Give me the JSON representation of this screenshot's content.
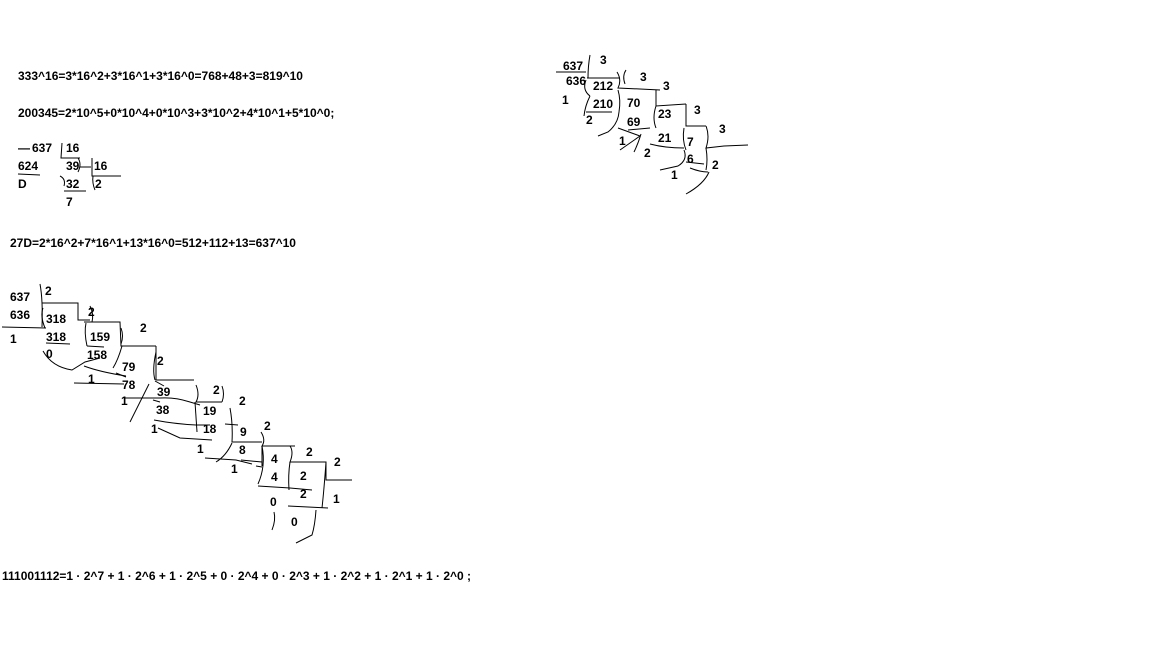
{
  "formulas": {
    "hex_333": "333^16=3*16^2+3*16^1+3*16^0=768+48+3=819^10",
    "dec_200345": "200345=2*10^5+0*10^4+0*10^3+3*10^2+4*10^1+5*10^0;",
    "hex_27D": "27D=2*16^2+7*16^1+13*16^0=512+112+13=637^10",
    "bin_111001112": "111001112=1 · 2^7 + 1 · 2^6 + 1 · 2^5 + 0 · 2^4 + 0 · 2^3 + 1 · 2^2 + 1 · 2^1 + 1 · 2^0 ;"
  },
  "hex_division": {
    "dash": "—",
    "dividend": "637",
    "divisor1": "16",
    "sub1": "624",
    "quotient1": "39",
    "divisor2": "16",
    "remainder1": "D",
    "sub2": "32",
    "quotient2": "2",
    "remainder2": "7"
  },
  "binary_division": {
    "dividend": "637",
    "d1": "2",
    "sub1": "636",
    "q1": "318",
    "r1": "1",
    "d2": "2",
    "sub2": "318",
    "q2": "159",
    "r2": "0",
    "d3": "2",
    "sub3": "158",
    "q3": "79",
    "r3": "1",
    "d4": "2",
    "sub4": "78",
    "q4": "39",
    "r4": "1",
    "d5": "2",
    "sub5": "38",
    "q5": "19",
    "r5": "1",
    "d6": "2",
    "sub6": "18",
    "q6": "9",
    "r6": "1",
    "d7": "2",
    "sub7": "8",
    "q7": "4",
    "r7": "1",
    "d8": "2",
    "sub8": "4",
    "q8": "2",
    "r8": "0",
    "d9": "2",
    "sub9": "2",
    "q9": "1",
    "r9": "0"
  },
  "ternary_division": {
    "dividend": "637",
    "d1": "3",
    "sub1": "636",
    "q1": "212",
    "r1": "1",
    "d2": "3",
    "sub2": "210",
    "q2": "70",
    "r2": "2",
    "d3": "3",
    "sub3": "69",
    "q3": "23",
    "r3": "1",
    "d4": "3",
    "sub4": "21",
    "q4": "7",
    "r4": "2",
    "d5": "3",
    "sub5": "6",
    "q5": "2",
    "r5": "1"
  }
}
